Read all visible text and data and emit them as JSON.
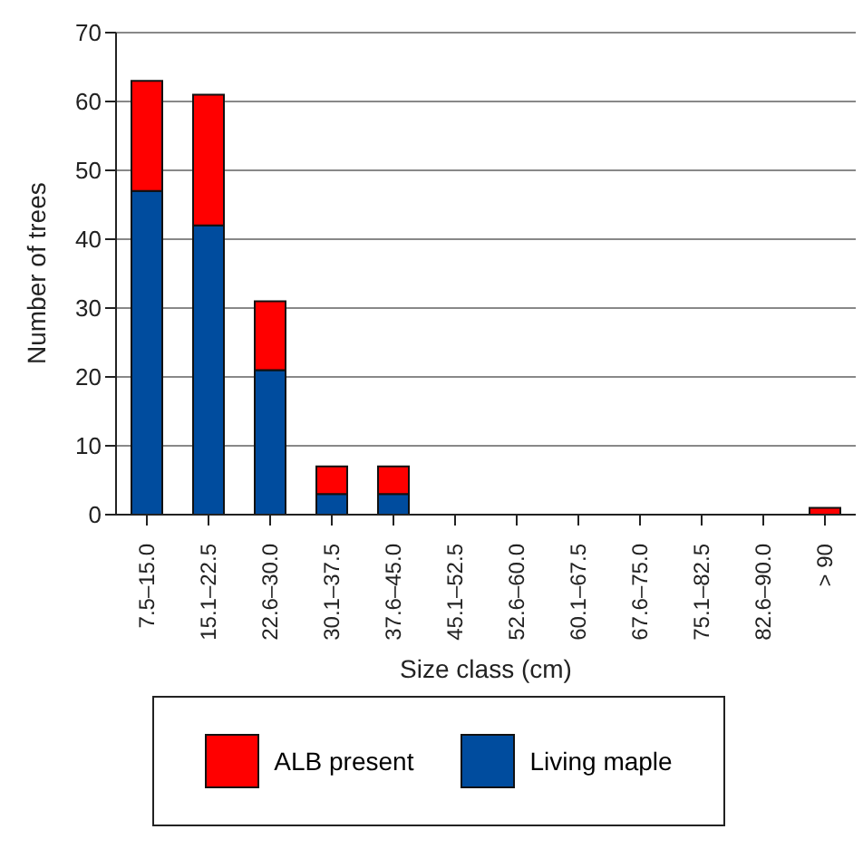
{
  "chart_data": {
    "type": "bar",
    "stacked": true,
    "xlabel": "Size class (cm)",
    "ylabel": "Number of trees",
    "categories": [
      "7.5–15.0",
      "15.1–22.5",
      "22.6–30.0",
      "30.1–37.5",
      "37.6–45.0",
      "45.1–52.5",
      "52.6–60.0",
      "60.1–67.5",
      "67.6–75.0",
      "75.1–82.5",
      "82.6–90.0",
      "> 90"
    ],
    "series": [
      {
        "name": "Living maple",
        "color": "#004c9e",
        "values": [
          47,
          42,
          21,
          3,
          3,
          0,
          0,
          0,
          0,
          0,
          0,
          0
        ]
      },
      {
        "name": "ALB present",
        "color": "#ff0000",
        "values": [
          16,
          19,
          10,
          4,
          4,
          0,
          0,
          0,
          0,
          0,
          0,
          1
        ]
      }
    ],
    "ylim": [
      0,
      70
    ],
    "yticks": [
      0,
      10,
      20,
      30,
      40,
      50,
      60,
      70
    ],
    "grid": "y",
    "legend": "bottom"
  }
}
